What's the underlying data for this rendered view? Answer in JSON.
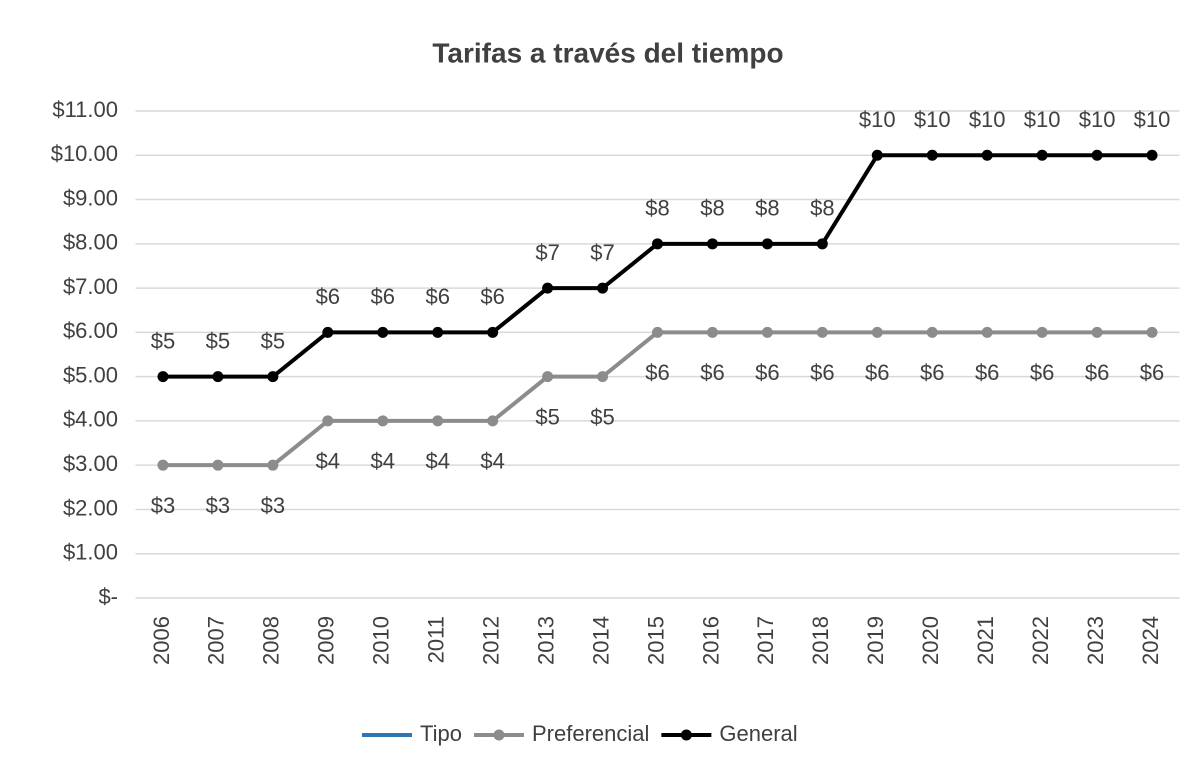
{
  "chart_data": {
    "type": "line",
    "title": "Tarifas a través del tiempo",
    "categories": [
      "2006",
      "2007",
      "2008",
      "2009",
      "2010",
      "2011",
      "2012",
      "2013",
      "2014",
      "2015",
      "2016",
      "2017",
      "2018",
      "2019",
      "2020",
      "2021",
      "2022",
      "2023",
      "2024"
    ],
    "series": [
      {
        "name": "Tipo",
        "color": "#2e75b6",
        "values": [
          null,
          null,
          null,
          null,
          null,
          null,
          null,
          null,
          null,
          null,
          null,
          null,
          null,
          null,
          null,
          null,
          null,
          null,
          null
        ]
      },
      {
        "name": "Preferencial",
        "color": "#8c8c8c",
        "values": [
          3,
          3,
          3,
          4,
          4,
          4,
          4,
          5,
          5,
          6,
          6,
          6,
          6,
          6,
          6,
          6,
          6,
          6,
          6
        ],
        "value_labels": [
          "$3",
          "$3",
          "$3",
          "$4",
          "$4",
          "$4",
          "$4",
          "$5",
          "$5",
          "$6",
          "$6",
          "$6",
          "$6",
          "$6",
          "$6",
          "$6",
          "$6",
          "$6",
          "$6"
        ]
      },
      {
        "name": "General",
        "color": "#000000",
        "values": [
          5,
          5,
          5,
          6,
          6,
          6,
          6,
          7,
          7,
          8,
          8,
          8,
          8,
          10,
          10,
          10,
          10,
          10,
          10
        ],
        "value_labels": [
          "$5",
          "$5",
          "$5",
          "$6",
          "$6",
          "$6",
          "$6",
          "$7",
          "$7",
          "$8",
          "$8",
          "$8",
          "$8",
          "$10",
          "$10",
          "$10",
          "$10",
          "$10",
          "$10"
        ]
      }
    ],
    "ylim": [
      0,
      11
    ],
    "yticks": [
      {
        "value": 0,
        "label": "$-"
      },
      {
        "value": 1,
        "label": "$1.00"
      },
      {
        "value": 2,
        "label": "$2.00"
      },
      {
        "value": 3,
        "label": "$3.00"
      },
      {
        "value": 4,
        "label": "$4.00"
      },
      {
        "value": 5,
        "label": "$5.00"
      },
      {
        "value": 6,
        "label": "$6.00"
      },
      {
        "value": 7,
        "label": "$7.00"
      },
      {
        "value": 8,
        "label": "$8.00"
      },
      {
        "value": 9,
        "label": "$9.00"
      },
      {
        "value": 10,
        "label": "$10.00"
      },
      {
        "value": 11,
        "label": "$11.00"
      }
    ],
    "grid": true,
    "legend": "bottom"
  }
}
